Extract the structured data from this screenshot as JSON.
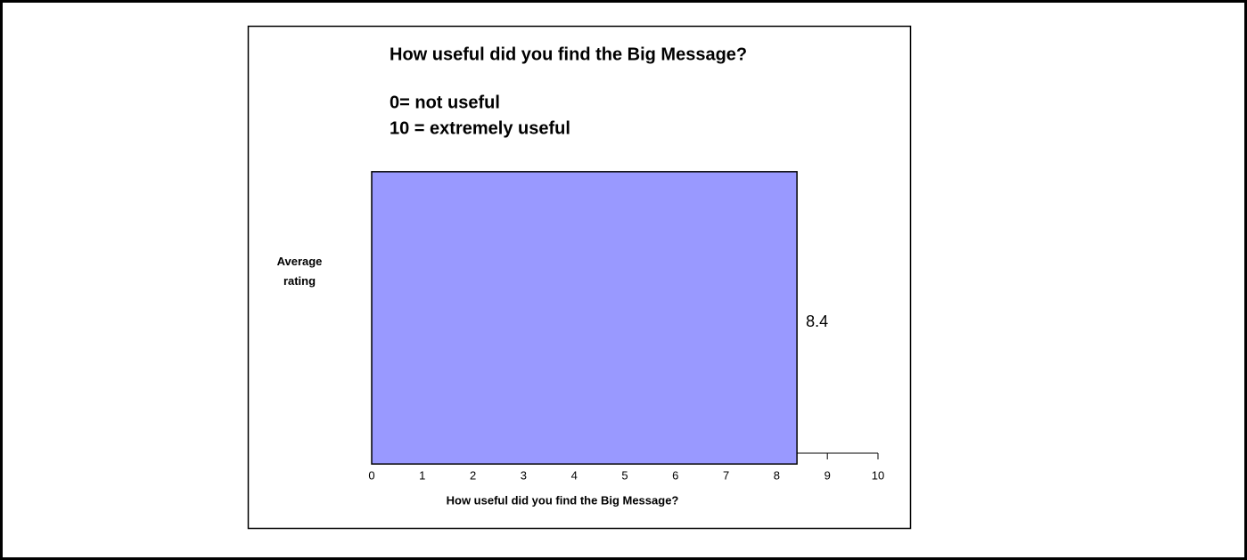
{
  "chart_data": {
    "type": "bar",
    "orientation": "horizontal",
    "title": "How useful did you find the Big Message?",
    "subtitle_lines": [
      "0= not useful",
      "10 = extremely useful"
    ],
    "categories": [
      "Average rating"
    ],
    "values": [
      8.4
    ],
    "color": "#9999ff",
    "xlim": [
      0,
      10
    ],
    "xticks": [
      0,
      1,
      2,
      3,
      4,
      5,
      6,
      7,
      8,
      9,
      10
    ],
    "xlabel": "How useful did you find the Big Message?",
    "grid": false
  }
}
